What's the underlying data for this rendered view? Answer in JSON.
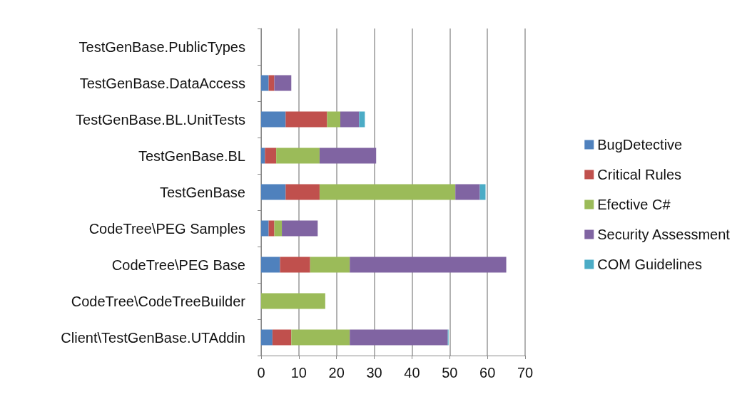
{
  "chart_data": {
    "type": "bar",
    "orientation": "horizontal",
    "stacked": true,
    "categories": [
      "TestGenBase.PublicTypes",
      "TestGenBase.DataAccess",
      "TestGenBase.BL.UnitTests",
      "TestGenBase.BL",
      "TestGenBase",
      "CodeTree\\PEG Samples",
      "CodeTree\\PEG Base",
      "CodeTree\\CodeTreeBuilder",
      "Client\\TestGenBase.UTAddin"
    ],
    "series": [
      {
        "name": "BugDetective",
        "color": "#4f81bd",
        "values": [
          0,
          2,
          6.5,
          1,
          6.5,
          2,
          5,
          0,
          3
        ]
      },
      {
        "name": "Critical Rules",
        "color": "#c0504d",
        "values": [
          0,
          1.5,
          11,
          3,
          9,
          1.5,
          8,
          0,
          5
        ]
      },
      {
        "name": "Efective C#",
        "color": "#9bbb59",
        "values": [
          0,
          0,
          3.5,
          11.5,
          36,
          2,
          10.5,
          17,
          15.5
        ]
      },
      {
        "name": "Security Assessment",
        "color": "#8064a2",
        "values": [
          0,
          4.5,
          5,
          15,
          6.5,
          9.5,
          41.5,
          0,
          26
        ]
      },
      {
        "name": "COM Guidelines",
        "color": "#4bacc6",
        "values": [
          0,
          0,
          1.5,
          0,
          1.5,
          0,
          0,
          0,
          0.2
        ]
      }
    ],
    "xlim": [
      0,
      70
    ],
    "xticks": [
      0,
      10,
      20,
      30,
      40,
      50,
      60,
      70
    ],
    "grid": "x",
    "legend": "right"
  }
}
